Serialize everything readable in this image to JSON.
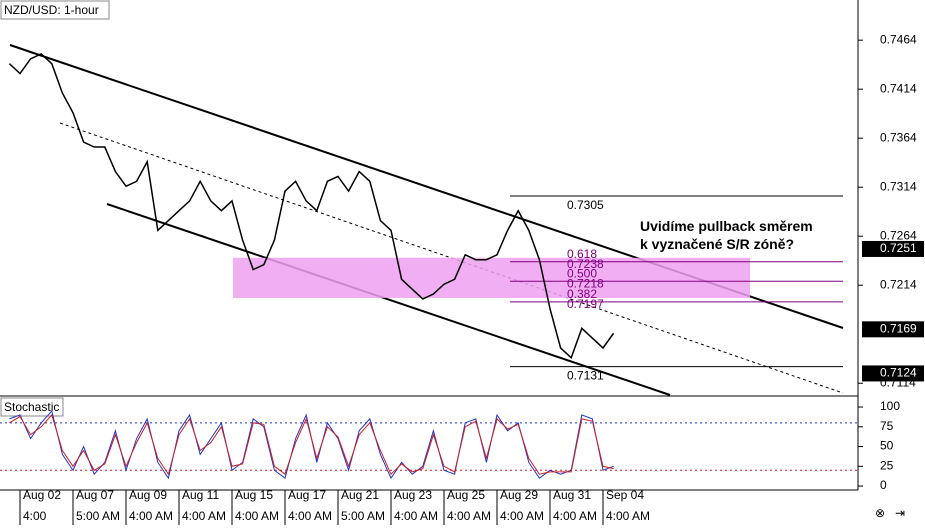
{
  "chart_data": [
    {
      "type": "line",
      "title": "NZD/USD: 1-hour",
      "categories": [
        null,
        "Aug 02",
        null,
        null,
        null,
        null,
        "Aug 07",
        null,
        null,
        null,
        null,
        "Aug 09",
        null,
        null,
        null,
        null,
        "Aug 11",
        null,
        null,
        null,
        null,
        "Aug 15",
        null,
        null,
        null,
        null,
        "Aug 17",
        null,
        null,
        null,
        null,
        "Aug 21",
        null,
        null,
        null,
        null,
        "Aug 23",
        null,
        null,
        null,
        null,
        "Aug 25",
        null,
        null,
        null,
        null,
        "Aug 29",
        null,
        null,
        null,
        null,
        "Aug 31",
        null,
        null,
        null,
        null,
        "Sep 04",
        null
      ],
      "time_labels": [
        null,
        "4:00",
        null,
        null,
        null,
        null,
        "5:00 AM",
        null,
        null,
        null,
        null,
        "4:00 AM",
        null,
        null,
        null,
        null,
        "4:00 AM",
        null,
        null,
        null,
        null,
        "4:00 AM",
        null,
        null,
        null,
        null,
        "4:00 AM",
        null,
        null,
        null,
        null,
        "5:00 AM",
        null,
        null,
        null,
        null,
        "4:00 AM",
        null,
        null,
        null,
        null,
        "4:00 AM",
        null,
        null,
        null,
        null,
        "4:00 AM",
        null,
        null,
        null,
        null,
        "4:00 AM",
        null,
        null,
        null,
        null,
        "4:00 AM",
        null
      ],
      "series": [
        {
          "color": "#000000",
          "values": [
            0.744,
            0.743,
            0.7445,
            0.745,
            0.744,
            0.741,
            0.739,
            0.736,
            0.7355,
            0.7355,
            0.733,
            0.7315,
            0.732,
            0.734,
            0.727,
            0.728,
            0.729,
            0.73,
            0.732,
            0.73,
            0.729,
            0.73,
            0.726,
            0.723,
            0.7235,
            0.726,
            0.731,
            0.732,
            0.73,
            0.729,
            0.732,
            0.7325,
            0.731,
            0.733,
            0.732,
            0.728,
            0.727,
            0.722,
            0.721,
            0.72,
            0.7205,
            0.7215,
            0.722,
            0.7245,
            0.724,
            0.724,
            0.7245,
            0.727,
            0.729,
            0.727,
            0.724,
            0.719,
            0.715,
            0.714,
            0.717,
            0.716,
            0.715,
            0.7165
          ]
        }
      ],
      "ylim": [
        0.7102,
        0.7505
      ],
      "yticks": [
        0.7464,
        0.7414,
        0.7364,
        0.7314,
        0.7264,
        0.7214,
        0.7114
      ],
      "price_labels": [
        0.7251,
        0.7169,
        0.7124
      ],
      "zone": [
        0.7201,
        0.7242
      ],
      "zone_color": "#f0a0f0",
      "fib_top": 0.7305,
      "fib_bottom": 0.7131,
      "fib_levels": [
        {
          "label": "0.618",
          "value": 0.7238
        },
        {
          "label": "0.500",
          "value": 0.7218
        },
        {
          "label": "0.382",
          "value": 0.7197
        }
      ],
      "annotation": "Uvidíme pullback směrem k vyznačené S/R zóně?"
    },
    {
      "type": "line",
      "title": "Stochastic",
      "series": [
        {
          "color": "#2233cc",
          "values": [
            85,
            90,
            60,
            80,
            95,
            40,
            20,
            50,
            15,
            30,
            70,
            20,
            60,
            85,
            30,
            10,
            70,
            90,
            40,
            60,
            80,
            20,
            30,
            85,
            75,
            20,
            10,
            60,
            90,
            30,
            80,
            60,
            20,
            70,
            85,
            40,
            10,
            30,
            15,
            25,
            70,
            20,
            15,
            80,
            85,
            30,
            90,
            70,
            80,
            30,
            10,
            20,
            15,
            20,
            90,
            85,
            20,
            25
          ]
        },
        {
          "color": "#cc2222",
          "values": [
            80,
            88,
            65,
            75,
            90,
            45,
            25,
            45,
            20,
            28,
            65,
            25,
            55,
            80,
            35,
            15,
            65,
            85,
            45,
            55,
            75,
            25,
            28,
            80,
            78,
            25,
            15,
            55,
            85,
            35,
            75,
            62,
            25,
            65,
            80,
            45,
            15,
            28,
            18,
            22,
            65,
            25,
            18,
            75,
            82,
            35,
            85,
            72,
            78,
            35,
            15,
            18,
            18,
            18,
            85,
            82,
            25,
            22
          ]
        }
      ],
      "ylim": [
        -5,
        112.7
      ],
      "yticks": [
        100,
        75,
        50,
        25,
        0
      ],
      "levels": [
        80,
        20
      ]
    }
  ]
}
